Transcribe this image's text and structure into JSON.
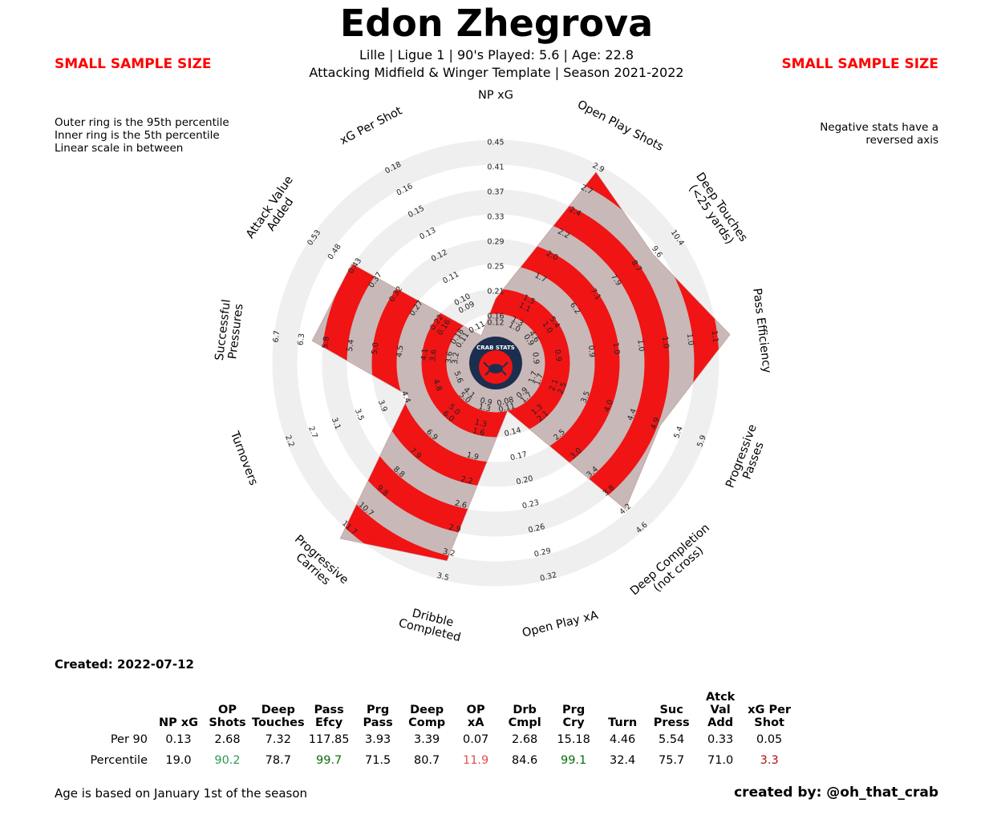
{
  "header": {
    "title": "Edon Zhegrova",
    "subtitle1": "Lille  | Ligue 1 | 90's Played: 5.6 | Age: 22.8",
    "subtitle2": "Attacking Midfield & Winger Template | Season 2021-2022",
    "warning_left": "SMALL SAMPLE SIZE",
    "warning_right": "SMALL SAMPLE SIZE"
  },
  "notes": {
    "left": [
      "Outer ring is the 95th percentile",
      "Inner ring is the 5th percentile",
      "Linear scale in between"
    ],
    "right": [
      "Negative stats have a",
      "reversed axis"
    ]
  },
  "logo_text": "CRAB STATS",
  "created": "Created: 2022-07-12",
  "footer": {
    "left": "Age is based on January 1st of the season",
    "right": "created by: @oh_that_crab"
  },
  "colors": {
    "fill_red": "#f01414",
    "fill_grey": "#c8b8b8",
    "ring_grey": "#efefef",
    "logo_navy": "#1c2e4e",
    "pct_high_green": "#2d9a4e",
    "pct_elite_green": "#0a6e0a",
    "pct_low_red": "#e05050",
    "pct_bad_red": "#b01010"
  },
  "chart_data": {
    "type": "radar",
    "axes": [
      {
        "label": [
          "NP xG"
        ],
        "ticks": [
          "0.07",
          "0.08",
          "0.09",
          "0.11",
          "0.12",
          "0.16",
          "0.21",
          "0.25",
          "0.29",
          "0.33",
          "0.37",
          "0.41",
          "0.45"
        ],
        "percentile": 19.0
      },
      {
        "label": [
          "Open Play Shots"
        ],
        "ticks": [
          "1.0",
          "1.3",
          "1.5",
          "1.7",
          "2.0",
          "2.2",
          "2.4",
          "2.7",
          "2.9"
        ],
        "percentile": 90.2
      },
      {
        "label": [
          "Deep Touches",
          "(<25 yards)"
        ],
        "ticks": [
          "3.2",
          "4.6",
          "5.4",
          "6.2",
          "7.1",
          "7.9",
          "8.7",
          "9.6",
          "10.4"
        ],
        "percentile": 78.7
      },
      {
        "label": [
          "Pass Efficiency"
        ],
        "ticks": [
          "0.9",
          "1.0",
          "1.0",
          "1.0",
          "1.0",
          "1.1"
        ],
        "percentile": 99.7
      },
      {
        "label": [
          "Progressive",
          "Passes"
        ],
        "ticks": [
          "1.7",
          "2.5",
          "3.5",
          "4.0",
          "4.4",
          "4.9",
          "5.4",
          "5.9"
        ],
        "percentile": 71.5
      },
      {
        "label": [
          "Deep Completion",
          "(not cross)"
        ],
        "ticks": [
          "1.7",
          "2.1",
          "2.5",
          "3.0",
          "3.4",
          "3.8",
          "4.2",
          "4.6"
        ],
        "percentile": 80.7
      },
      {
        "label": [
          "Open Play xA"
        ],
        "ticks": [
          "0.08",
          "0.11",
          "0.14",
          "0.17",
          "0.20",
          "0.23",
          "0.26",
          "0.29",
          "0.32"
        ],
        "percentile": 11.9
      },
      {
        "label": [
          "Dribble",
          "Completed"
        ],
        "ticks": [
          "1.3",
          "1.6",
          "1.9",
          "2.2",
          "2.6",
          "2.9",
          "3.2",
          "3.5"
        ],
        "percentile": 84.6
      },
      {
        "label": [
          "Progressive",
          "Carries"
        ],
        "ticks": [
          "5.0",
          "6.0",
          "6.9",
          "7.9",
          "8.8",
          "9.8",
          "10.7",
          "11.7"
        ],
        "percentile": 99.1
      },
      {
        "label": [
          "Turnovers"
        ],
        "ticks": [
          "4.4",
          "3.9",
          "3.5",
          "3.1",
          "2.7",
          "2.2"
        ],
        "percentile": 32.4
      },
      {
        "label": [
          "Successful",
          "Pressures"
        ],
        "ticks": [
          "3.6",
          "4.1",
          "4.5",
          "5.0",
          "5.4",
          "5.8",
          "6.3",
          "6.7"
        ],
        "percentile": 75.7
      },
      {
        "label": [
          "Attack Value",
          "Added"
        ],
        "ticks": [
          "0.18",
          "0.22",
          "0.27",
          "0.32",
          "0.37",
          "0.43",
          "0.48",
          "0.53"
        ],
        "percentile": 71.0
      },
      {
        "label": [
          "xG Per Shot"
        ],
        "ticks": [
          "0.10",
          "0.11",
          "0.12",
          "0.13",
          "0.15",
          "0.16",
          "0.18"
        ],
        "percentile": 3.3
      }
    ],
    "inner_ticks": [
      [
        "0.12"
      ],
      [
        "1.0",
        "1.1"
      ],
      [
        "0.9",
        "1.0"
      ],
      [
        "0.9",
        "0.9"
      ],
      [
        "1.7",
        "2.1"
      ],
      [
        "0.9",
        "1.3"
      ],
      [
        "0.08"
      ],
      [
        "0.9",
        "1.3"
      ],
      [
        "4.1",
        "5.0"
      ],
      [
        "5.6",
        "4.8"
      ],
      [
        "3.2",
        "3.6"
      ],
      [
        "0.11",
        "0.16"
      ],
      [
        "0.11",
        "0.09"
      ]
    ]
  },
  "table": {
    "row_labels": [
      "Per 90",
      "Percentile"
    ],
    "columns": [
      {
        "h1": "",
        "h2": "NP xG",
        "per90": "0.13",
        "pct": "19.0",
        "pct_color": ""
      },
      {
        "h1": "OP",
        "h2": "Shots",
        "per90": "2.68",
        "pct": "90.2",
        "pct_color": "#2d9a4e"
      },
      {
        "h1": "Deep",
        "h2": "Touches",
        "per90": "7.32",
        "pct": "78.7",
        "pct_color": ""
      },
      {
        "h1": "Pass",
        "h2": "Efcy",
        "per90": "117.85",
        "pct": "99.7",
        "pct_color": "#0a6e0a"
      },
      {
        "h1": "Prg",
        "h2": "Pass",
        "per90": "3.93",
        "pct": "71.5",
        "pct_color": ""
      },
      {
        "h1": "Deep",
        "h2": "Comp",
        "per90": "3.39",
        "pct": "80.7",
        "pct_color": ""
      },
      {
        "h1": "OP",
        "h2": "xA",
        "per90": "0.07",
        "pct": "11.9",
        "pct_color": "#e05050"
      },
      {
        "h1": "Drb",
        "h2": "Cmpl",
        "per90": "2.68",
        "pct": "84.6",
        "pct_color": ""
      },
      {
        "h1": "Prg",
        "h2": "Cry",
        "per90": "15.18",
        "pct": "99.1",
        "pct_color": "#0a6e0a"
      },
      {
        "h1": "",
        "h2": "Turn",
        "per90": "4.46",
        "pct": "32.4",
        "pct_color": ""
      },
      {
        "h1": "Suc",
        "h2": "Press",
        "per90": "5.54",
        "pct": "75.7",
        "pct_color": ""
      },
      {
        "h1": "Atck",
        "h2": "Val Add",
        "per90": "0.33",
        "pct": "71.0",
        "pct_color": ""
      },
      {
        "h1": "xG Per",
        "h2": "Shot",
        "per90": "0.05",
        "pct": "3.3",
        "pct_color": "#b01010"
      }
    ]
  }
}
